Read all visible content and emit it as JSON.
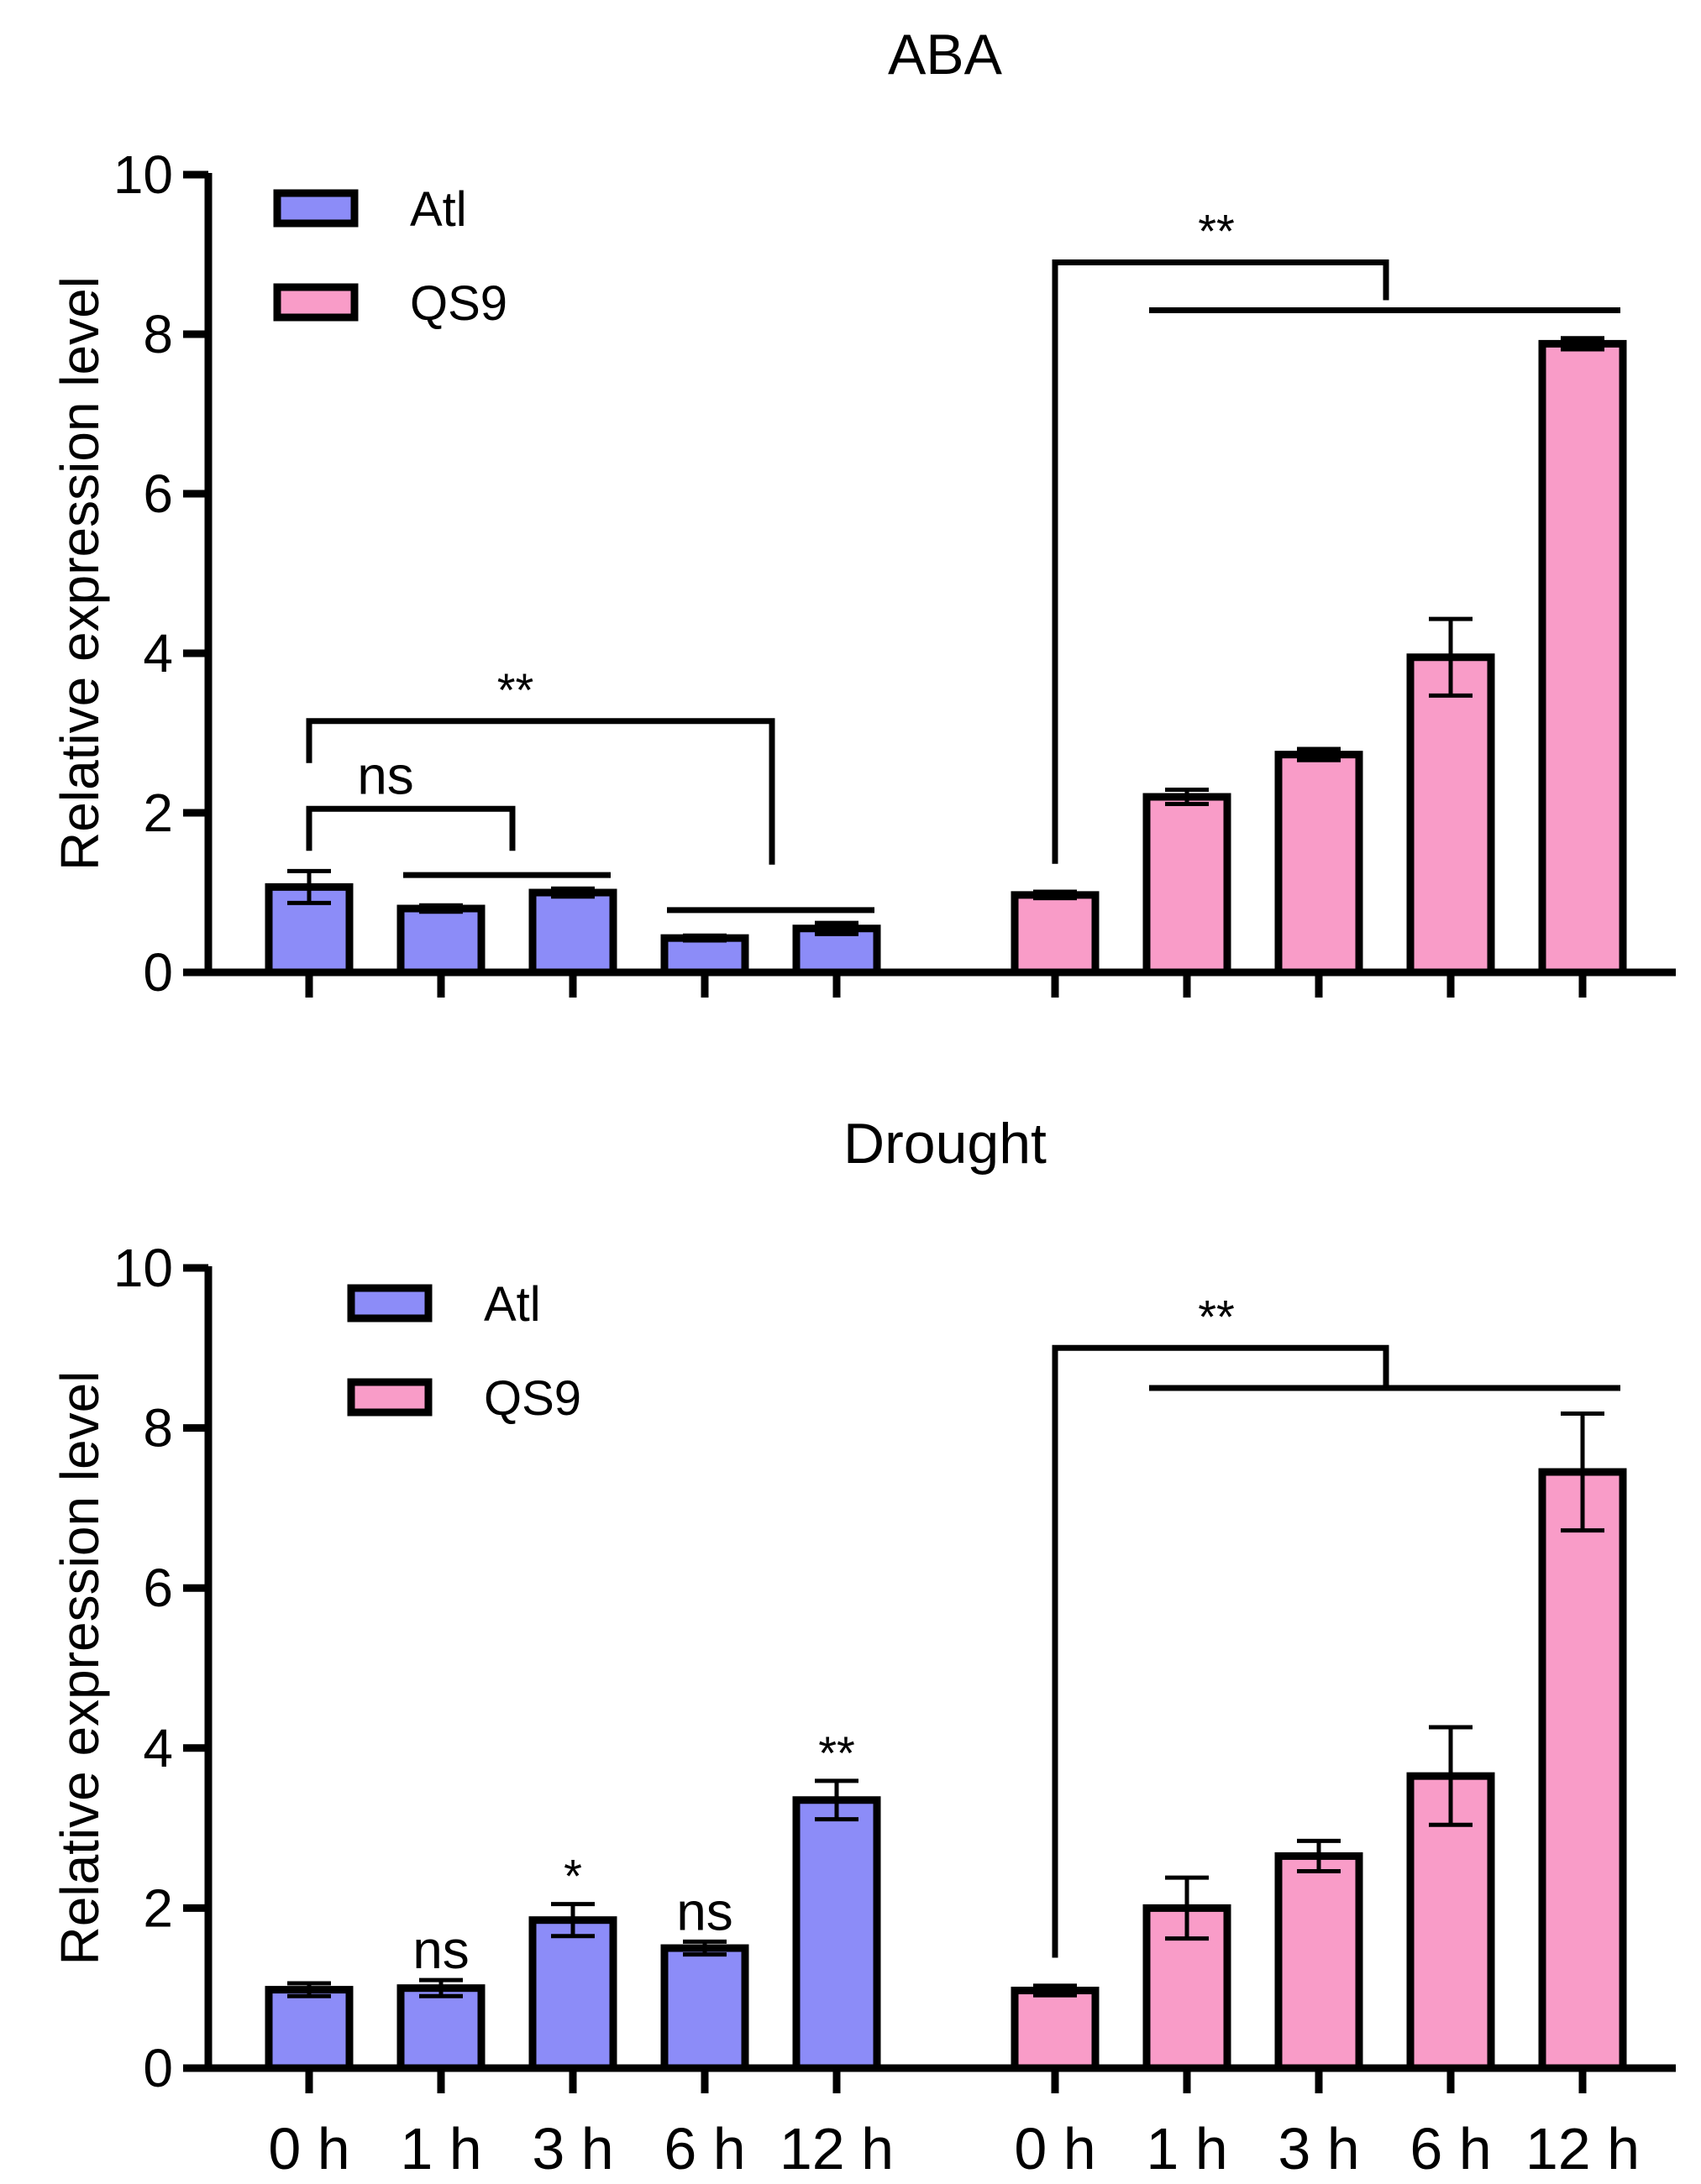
{
  "figure": {
    "legend": [
      {
        "name": "Atl",
        "color": "#8c8cf8"
      },
      {
        "name": "QS9",
        "color": "#f99cc8"
      }
    ]
  },
  "chart_data": [
    {
      "type": "bar",
      "title": "ABA",
      "ylabel": "Relative expression level",
      "xlabel": "",
      "ylim": [
        0,
        10
      ],
      "yticks": [
        "0",
        "2",
        "4",
        "6",
        "8",
        "10"
      ],
      "categories": [
        "0 h",
        "1 h",
        "3 h",
        "6 h",
        "12 h"
      ],
      "show_category_labels": false,
      "series": [
        {
          "name": "Atl",
          "color": "#8c8cf8",
          "values": [
            1.07,
            0.8,
            1.0,
            0.43,
            0.55
          ],
          "errors": [
            0.2,
            0.04,
            0.05,
            0.03,
            0.07
          ]
        },
        {
          "name": "QS9",
          "color": "#f99cc8",
          "values": [
            0.97,
            2.2,
            2.73,
            3.95,
            7.88
          ],
          "errors": [
            0.04,
            0.09,
            0.07,
            0.48,
            0.07
          ]
        }
      ],
      "annotations": [
        {
          "label": "**",
          "series": "Atl",
          "type": "bracket",
          "from": 0,
          "to": 4
        },
        {
          "label": "ns",
          "series": "Atl",
          "type": "bracket",
          "from": 0,
          "to": 2
        },
        {
          "label": "**",
          "series": "QS9",
          "type": "bracket",
          "from": 0,
          "to": 4
        }
      ]
    },
    {
      "type": "bar",
      "title": "Drought",
      "ylabel": "Relative expression level",
      "xlabel": "",
      "ylim": [
        0,
        10
      ],
      "yticks": [
        "0",
        "2",
        "4",
        "6",
        "8",
        "10"
      ],
      "categories": [
        "0 h",
        "1 h",
        "3 h",
        "6 h",
        "12 h"
      ],
      "show_category_labels": true,
      "series": [
        {
          "name": "Atl",
          "color": "#8c8cf8",
          "values": [
            0.98,
            1.0,
            1.85,
            1.5,
            3.35
          ],
          "errors": [
            0.08,
            0.1,
            0.2,
            0.08,
            0.24
          ]
        },
        {
          "name": "QS9",
          "color": "#f99cc8",
          "values": [
            0.97,
            2.0,
            2.65,
            3.65,
            7.45
          ],
          "errors": [
            0.06,
            0.38,
            0.19,
            0.61,
            0.73
          ]
        }
      ],
      "annotations": [
        {
          "label": "ns",
          "series": "Atl",
          "type": "point",
          "index": 1
        },
        {
          "label": "*",
          "series": "Atl",
          "type": "point",
          "index": 2
        },
        {
          "label": "ns",
          "series": "Atl",
          "type": "point",
          "index": 3
        },
        {
          "label": "**",
          "series": "Atl",
          "type": "point",
          "index": 4
        },
        {
          "label": "**",
          "series": "QS9",
          "type": "bracket",
          "from": 0,
          "to": 4
        }
      ]
    }
  ]
}
